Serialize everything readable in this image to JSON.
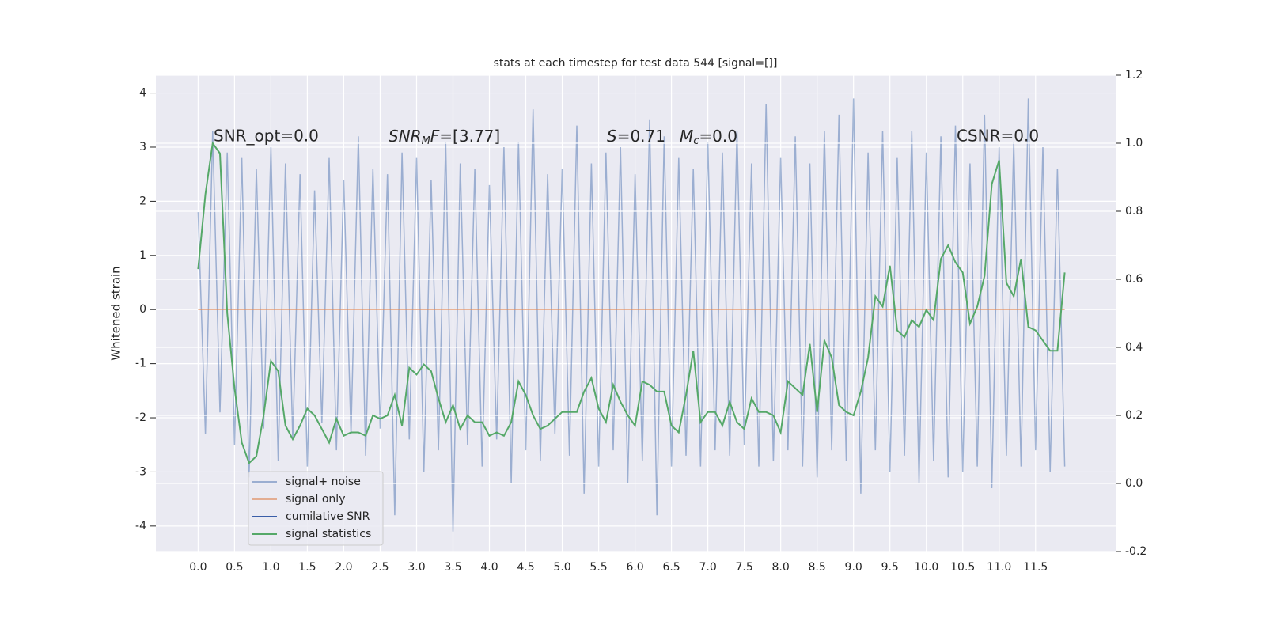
{
  "chart_data": {
    "type": "line",
    "title": "stats at each timestep for test data 544 [signal=[]]",
    "y_label": "Whitened strain",
    "annotations": [
      [
        "SNR_opt=0.0"
      ],
      [
        "SNR",
        "M",
        "F",
        "=[3.77]"
      ],
      [
        "S",
        "=0.71"
      ],
      [
        "M",
        "c",
        "=0.0"
      ],
      [
        "CSNR=0.0"
      ]
    ],
    "x": [
      0.0,
      0.1,
      0.2,
      0.3,
      0.4,
      0.5,
      0.6,
      0.7,
      0.8,
      0.9,
      1.0,
      1.1,
      1.2,
      1.3,
      1.4,
      1.5,
      1.6,
      1.7,
      1.8,
      1.9,
      2.0,
      2.1,
      2.2,
      2.3,
      2.4,
      2.5,
      2.6,
      2.7,
      2.8,
      2.9,
      3.0,
      3.1,
      3.2,
      3.3,
      3.4,
      3.5,
      3.6,
      3.7,
      3.8,
      3.9,
      4.0,
      4.1,
      4.2,
      4.3,
      4.4,
      4.5,
      4.6,
      4.7,
      4.8,
      4.9,
      5.0,
      5.1,
      5.2,
      5.3,
      5.4,
      5.5,
      5.6,
      5.7,
      5.8,
      5.9,
      6.0,
      6.1,
      6.2,
      6.3,
      6.4,
      6.5,
      6.6,
      6.7,
      6.8,
      6.9,
      7.0,
      7.1,
      7.2,
      7.3,
      7.4,
      7.5,
      7.6,
      7.7,
      7.8,
      7.9,
      8.0,
      8.1,
      8.2,
      8.3,
      8.4,
      8.5,
      8.6,
      8.7,
      8.8,
      8.9,
      9.0,
      9.1,
      9.2,
      9.3,
      9.4,
      9.5,
      9.6,
      9.7,
      9.8,
      9.9,
      10.0,
      10.1,
      10.2,
      10.3,
      10.4,
      10.5,
      10.6,
      10.7,
      10.8,
      10.9,
      11.0,
      11.1,
      11.2,
      11.3,
      11.4,
      11.5,
      11.6,
      11.7,
      11.8,
      11.9
    ],
    "series": [
      {
        "name": "signal+ noise",
        "color": "#4c72b0",
        "opacity": 0.5,
        "values": [
          1.8,
          -2.3,
          3.3,
          -1.9,
          2.9,
          -2.5,
          2.8,
          -3.1,
          2.6,
          -2.2,
          3.0,
          -2.8,
          2.7,
          -2.4,
          2.5,
          -2.9,
          2.2,
          -2.1,
          2.8,
          -2.6,
          2.4,
          -2.3,
          3.2,
          -2.7,
          2.6,
          -2.2,
          2.5,
          -3.8,
          2.9,
          -2.4,
          2.8,
          -3.0,
          2.4,
          -2.6,
          3.1,
          -4.1,
          2.7,
          -2.5,
          2.6,
          -2.9,
          2.3,
          -2.4,
          3.0,
          -3.2,
          3.1,
          -2.6,
          3.7,
          -2.8,
          2.5,
          -2.3,
          2.6,
          -2.7,
          3.4,
          -3.4,
          2.7,
          -2.9,
          2.9,
          -2.6,
          3.0,
          -3.2,
          2.5,
          -2.8,
          3.5,
          -3.8,
          3.2,
          -2.9,
          2.8,
          -2.7,
          2.6,
          -2.9,
          3.1,
          -2.6,
          2.9,
          -2.7,
          3.3,
          -2.5,
          2.7,
          -2.9,
          3.8,
          -2.8,
          2.8,
          -2.6,
          3.2,
          -2.9,
          2.7,
          -3.1,
          3.3,
          -2.6,
          3.6,
          -2.8,
          3.9,
          -3.4,
          2.9,
          -2.6,
          3.3,
          -3.0,
          2.8,
          -2.7,
          3.3,
          -3.2,
          2.9,
          -2.8,
          3.2,
          -3.1,
          3.4,
          -3.0,
          2.7,
          -2.9,
          3.6,
          -3.3,
          3.0,
          -2.7,
          3.1,
          -2.9,
          3.9,
          -2.6,
          3.0,
          -3.0,
          2.6,
          -2.9
        ]
      },
      {
        "name": "signal only",
        "color": "#dd8452",
        "opacity": 0.6,
        "values": [
          0,
          0,
          0,
          0,
          0,
          0,
          0,
          0,
          0,
          0,
          0,
          0,
          0,
          0,
          0,
          0,
          0,
          0,
          0,
          0,
          0,
          0,
          0,
          0,
          0,
          0,
          0,
          0,
          0,
          0,
          0,
          0,
          0,
          0,
          0,
          0,
          0,
          0,
          0,
          0,
          0,
          0,
          0,
          0,
          0,
          0,
          0,
          0,
          0,
          0,
          0,
          0,
          0,
          0,
          0,
          0,
          0,
          0,
          0,
          0,
          0,
          0,
          0,
          0,
          0,
          0,
          0,
          0,
          0,
          0,
          0,
          0,
          0,
          0,
          0,
          0,
          0,
          0,
          0,
          0,
          0,
          0,
          0,
          0,
          0,
          0,
          0,
          0,
          0,
          0,
          0,
          0,
          0,
          0,
          0,
          0,
          0,
          0,
          0,
          0,
          0,
          0,
          0,
          0,
          0,
          0,
          0,
          0,
          0,
          0,
          0,
          0,
          0,
          0,
          0,
          0,
          0,
          0,
          0,
          0
        ]
      },
      {
        "name": "cumilative SNR",
        "color": "#3a5ea8",
        "opacity": 1,
        "values": [
          null,
          null,
          null,
          null,
          null,
          null,
          null,
          null,
          null,
          null,
          null,
          null,
          null,
          null,
          null,
          null,
          null,
          null,
          null,
          null,
          null,
          null,
          null,
          null,
          null,
          null,
          null,
          null,
          null,
          null,
          null,
          null,
          null,
          null,
          null,
          null,
          null,
          null,
          null,
          null,
          null,
          null,
          null,
          null,
          null,
          null,
          null,
          null,
          null,
          null,
          null,
          null,
          null,
          null,
          null,
          null,
          null,
          null,
          null,
          null,
          null,
          null,
          null,
          null,
          null,
          null,
          null,
          null,
          null,
          null,
          null,
          null,
          null,
          null,
          null,
          null,
          null,
          null,
          null,
          null,
          null,
          null,
          null,
          null,
          null,
          null,
          null,
          null,
          null,
          null,
          null,
          null,
          null,
          null,
          null,
          null,
          null,
          null,
          null,
          null,
          null,
          null,
          null,
          null,
          null,
          null,
          null,
          null,
          null,
          null,
          null,
          null,
          null,
          null,
          null,
          null,
          null,
          null,
          null,
          null
        ]
      },
      {
        "name": "signal statistics",
        "color": "#55a868",
        "opacity": 1,
        "axis": "y2",
        "values": [
          0.63,
          0.85,
          1.0,
          0.97,
          0.5,
          0.28,
          0.12,
          0.06,
          0.08,
          0.2,
          0.36,
          0.33,
          0.17,
          0.13,
          0.17,
          0.22,
          0.2,
          0.16,
          0.12,
          0.19,
          0.14,
          0.15,
          0.15,
          0.14,
          0.2,
          0.19,
          0.2,
          0.26,
          0.17,
          0.34,
          0.32,
          0.35,
          0.33,
          0.25,
          0.18,
          0.23,
          0.16,
          0.2,
          0.18,
          0.18,
          0.14,
          0.15,
          0.14,
          0.18,
          0.3,
          0.26,
          0.2,
          0.16,
          0.17,
          0.19,
          0.21,
          0.21,
          0.21,
          0.27,
          0.31,
          0.22,
          0.18,
          0.29,
          0.24,
          0.2,
          0.17,
          0.3,
          0.29,
          0.27,
          0.27,
          0.17,
          0.15,
          0.26,
          0.39,
          0.18,
          0.21,
          0.21,
          0.17,
          0.24,
          0.18,
          0.16,
          0.25,
          0.21,
          0.21,
          0.2,
          0.15,
          0.3,
          0.28,
          0.26,
          0.41,
          0.21,
          0.42,
          0.37,
          0.23,
          0.21,
          0.2,
          0.27,
          0.37,
          0.55,
          0.52,
          0.64,
          0.45,
          0.43,
          0.48,
          0.46,
          0.51,
          0.48,
          0.66,
          0.7,
          0.65,
          0.62,
          0.47,
          0.52,
          0.61,
          0.88,
          0.95,
          0.59,
          0.55,
          0.66,
          0.46,
          0.45,
          0.42,
          0.39,
          0.39,
          0.62
        ]
      }
    ],
    "xlim": [
      -0.58,
      12.6
    ],
    "xticks": [
      {
        "value": 0,
        "label": "0.0"
      },
      0.5,
      {
        "value": 1,
        "label": "1.0"
      },
      1.5,
      {
        "value": 2,
        "label": "2.0"
      },
      2.5,
      {
        "value": 3,
        "label": "3.0"
      },
      3.5,
      {
        "value": 4,
        "label": "4.0"
      },
      4.5,
      {
        "value": 5,
        "label": "5.0"
      },
      5.5,
      {
        "value": 6,
        "label": "6.0"
      },
      6.5,
      {
        "value": 7,
        "label": "7.0"
      },
      7.5,
      {
        "value": 8,
        "label": "8.0"
      },
      8.5,
      {
        "value": 9,
        "label": "9.0"
      },
      9.5,
      {
        "value": 10,
        "label": "10.0"
      },
      10.5,
      {
        "value": 11,
        "label": "11.0"
      },
      11.5
    ],
    "ylim": [
      -4.47,
      4.33
    ],
    "yticks": [
      -4,
      -3,
      -2,
      -1,
      0,
      1,
      2,
      3,
      4
    ],
    "y2lim": [
      -0.2,
      1.2
    ],
    "y2ticks": [
      -0.2,
      {
        "value": 0,
        "label": "0.0"
      },
      0.2,
      0.4,
      0.6,
      0.8,
      {
        "value": 1,
        "label": "1.0"
      },
      1.2
    ],
    "grid": true,
    "legend": "lower left"
  }
}
